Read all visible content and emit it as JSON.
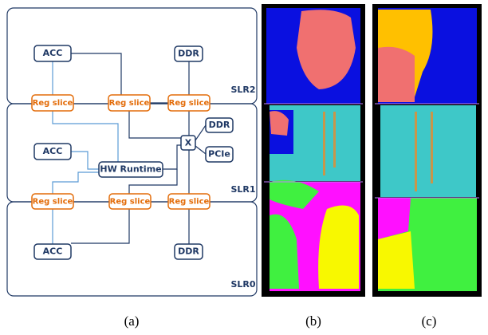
{
  "regions": [
    {
      "label": "SLR2"
    },
    {
      "label": "SLR1"
    },
    {
      "label": "SLR0"
    }
  ],
  "nodes": [
    {
      "label": "ACC"
    },
    {
      "label": "DDR"
    },
    {
      "label": "Reg slice"
    },
    {
      "label": "Reg slice"
    },
    {
      "label": "Reg slice"
    },
    {
      "label": "X"
    },
    {
      "label": "DDR"
    },
    {
      "label": "PCIe"
    },
    {
      "label": "ACC"
    },
    {
      "label": "HW Runtime"
    },
    {
      "label": "Reg slice"
    },
    {
      "label": "Reg slice"
    },
    {
      "label": "Reg slice"
    },
    {
      "label": "ACC"
    },
    {
      "label": "DDR"
    }
  ],
  "captions": [
    "(a)",
    "(b)",
    "(c)"
  ]
}
